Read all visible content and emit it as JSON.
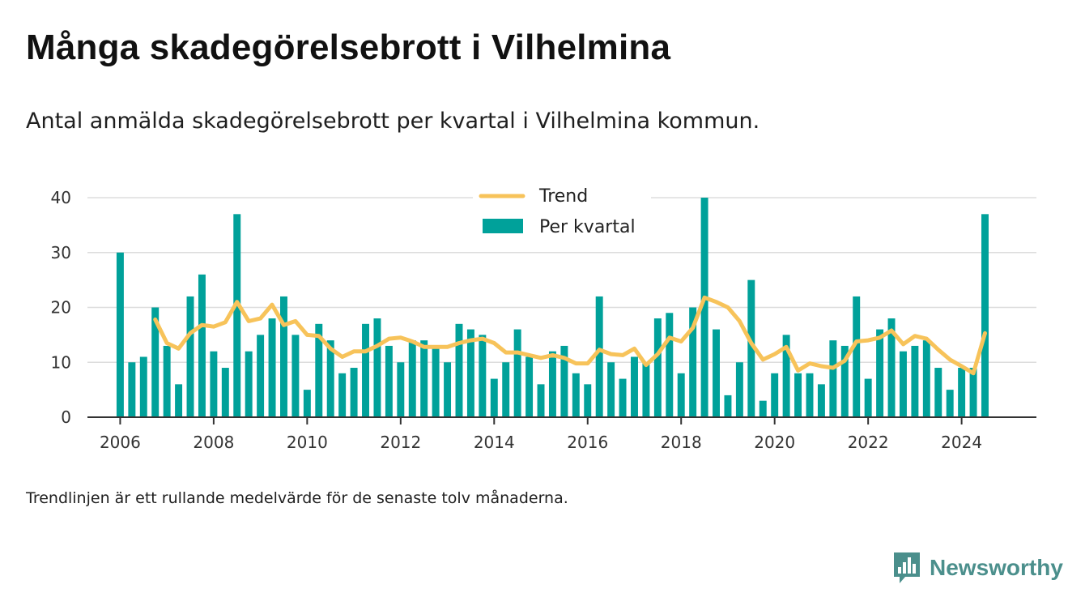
{
  "title": "Många skadegörelsebrott i Vilhelmina",
  "subtitle": "Antal anmälda skadegörelsebrott per kvartal i Vilhelmina kommun.",
  "footnote": "Trendlinjen är ett rullande medelvärde för de senaste tolv månaderna.",
  "brand": {
    "name": "Newsworthy",
    "color": "#4b8f8c",
    "icon": "bar-chart-speech-bubble-icon"
  },
  "colors": {
    "bars": "#00a19a",
    "trend": "#f7c35a",
    "grid": "#dddddd",
    "axis": "#333333"
  },
  "chart_data": {
    "type": "bar",
    "x_unit": "quarter (decimal year)",
    "x_ticks": [
      2006,
      2008,
      2010,
      2012,
      2014,
      2016,
      2018,
      2020,
      2022,
      2024
    ],
    "y_ticks": [
      0,
      10,
      20,
      30,
      40
    ],
    "xlim": [
      2005.3,
      2025.6
    ],
    "ylim": [
      0,
      40
    ],
    "grid": true,
    "legend_position": "top-center",
    "series": [
      {
        "name": "Per kvartal",
        "type": "bar",
        "x": [
          2006.0,
          2006.25,
          2006.5,
          2006.75,
          2007.0,
          2007.25,
          2007.5,
          2007.75,
          2008.0,
          2008.25,
          2008.5,
          2008.75,
          2009.0,
          2009.25,
          2009.5,
          2009.75,
          2010.0,
          2010.25,
          2010.5,
          2010.75,
          2011.0,
          2011.25,
          2011.5,
          2011.75,
          2012.0,
          2012.25,
          2012.5,
          2012.75,
          2013.0,
          2013.25,
          2013.5,
          2013.75,
          2014.0,
          2014.25,
          2014.5,
          2014.75,
          2015.0,
          2015.25,
          2015.5,
          2015.75,
          2016.0,
          2016.25,
          2016.5,
          2016.75,
          2017.0,
          2017.25,
          2017.5,
          2017.75,
          2018.0,
          2018.25,
          2018.5,
          2018.75,
          2019.0,
          2019.25,
          2019.5,
          2019.75,
          2020.0,
          2020.25,
          2020.5,
          2020.75,
          2021.0,
          2021.25,
          2021.5,
          2021.75,
          2022.0,
          2022.25,
          2022.5,
          2022.75,
          2023.0,
          2023.25,
          2023.5,
          2023.75,
          2024.0,
          2024.25,
          2024.5
        ],
        "values": [
          30,
          10,
          11,
          20,
          13,
          6,
          22,
          26,
          12,
          9,
          37,
          12,
          15,
          18,
          22,
          15,
          5,
          17,
          14,
          8,
          9,
          17,
          18,
          13,
          10,
          14,
          14,
          13,
          10,
          17,
          16,
          15,
          7,
          10,
          16,
          11,
          6,
          12,
          13,
          8,
          6,
          22,
          10,
          7,
          11,
          10,
          18,
          19,
          8,
          20,
          40,
          16,
          4,
          10,
          25,
          3,
          8,
          15,
          8,
          8,
          6,
          14,
          13,
          22,
          7,
          16,
          18,
          12,
          13,
          14,
          9,
          5,
          9,
          9,
          37
        ]
      },
      {
        "name": "Trend",
        "type": "line",
        "x": [
          2006.75,
          2007.0,
          2007.25,
          2007.5,
          2007.75,
          2008.0,
          2008.25,
          2008.5,
          2008.75,
          2009.0,
          2009.25,
          2009.5,
          2009.75,
          2010.0,
          2010.25,
          2010.5,
          2010.75,
          2011.0,
          2011.25,
          2011.5,
          2011.75,
          2012.0,
          2012.25,
          2012.5,
          2012.75,
          2013.0,
          2013.25,
          2013.5,
          2013.75,
          2014.0,
          2014.25,
          2014.5,
          2014.75,
          2015.0,
          2015.25,
          2015.5,
          2015.75,
          2016.0,
          2016.25,
          2016.5,
          2016.75,
          2017.0,
          2017.25,
          2017.5,
          2017.75,
          2018.0,
          2018.25,
          2018.5,
          2018.75,
          2019.0,
          2019.25,
          2019.5,
          2019.75,
          2020.0,
          2020.25,
          2020.5,
          2020.75,
          2021.0,
          2021.25,
          2021.5,
          2021.75,
          2022.0,
          2022.25,
          2022.5,
          2022.75,
          2023.0,
          2023.25,
          2023.5,
          2023.75,
          2024.0,
          2024.25,
          2024.5
        ],
        "values": [
          17.8,
          13.5,
          12.5,
          15.3,
          16.8,
          16.5,
          17.3,
          21.0,
          17.5,
          18.0,
          20.5,
          16.8,
          17.5,
          15.0,
          14.8,
          12.5,
          11.0,
          12.0,
          12.0,
          13.0,
          14.3,
          14.5,
          13.8,
          12.8,
          12.8,
          12.8,
          13.5,
          14.0,
          14.3,
          13.5,
          11.8,
          11.8,
          11.3,
          10.8,
          11.3,
          10.8,
          9.8,
          9.8,
          12.3,
          11.5,
          11.3,
          12.5,
          9.5,
          11.5,
          14.5,
          13.8,
          16.3,
          21.8,
          21.0,
          20.0,
          17.5,
          13.5,
          10.5,
          11.5,
          12.8,
          8.5,
          9.8,
          9.3,
          9.0,
          10.3,
          13.8,
          14.0,
          14.5,
          15.8,
          13.3,
          14.8,
          14.3,
          12.3,
          10.5,
          9.3,
          8.0,
          15.3
        ]
      }
    ]
  }
}
